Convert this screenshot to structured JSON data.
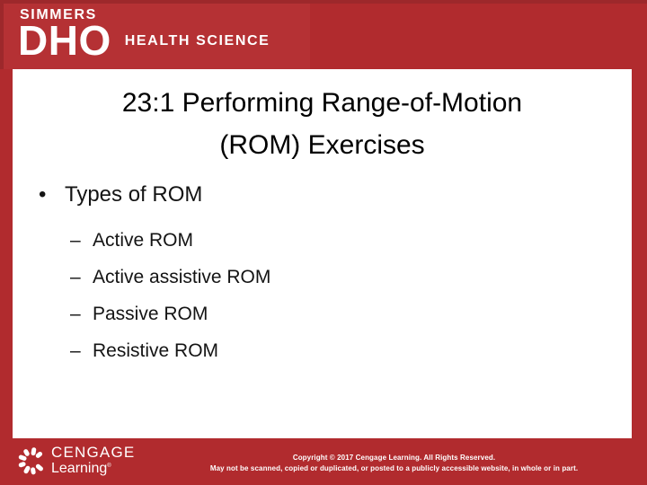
{
  "brand": {
    "series": "SIMMERS",
    "title": "DHO",
    "subtitle": "HEALTH SCIENCE"
  },
  "title": {
    "line1": "23:1 Performing Range-of-Motion",
    "line2": "(ROM) Exercises"
  },
  "bullets": {
    "level1_marker": "•",
    "level1": "Types of ROM",
    "sub_marker": "–",
    "sub_items": [
      "Active ROM",
      "Active assistive ROM",
      "Passive ROM",
      "Resistive ROM"
    ]
  },
  "footer": {
    "logo_name": "CENGAGE",
    "logo_sub": "Learning",
    "logo_reg": "®",
    "copyright_line1": "Copyright © 2017 Cengage Learning. All Rights Reserved.",
    "copyright_line2": "May not be scanned, copied or duplicated, or posted to a publicly accessible website, in whole or in part."
  },
  "colors": {
    "band_red": "#B12B2E",
    "logo_block_red": "#B53134",
    "frame_dark_red": "#9D282B",
    "content_bg": "#FFFFFF",
    "text_color": "#141414"
  }
}
